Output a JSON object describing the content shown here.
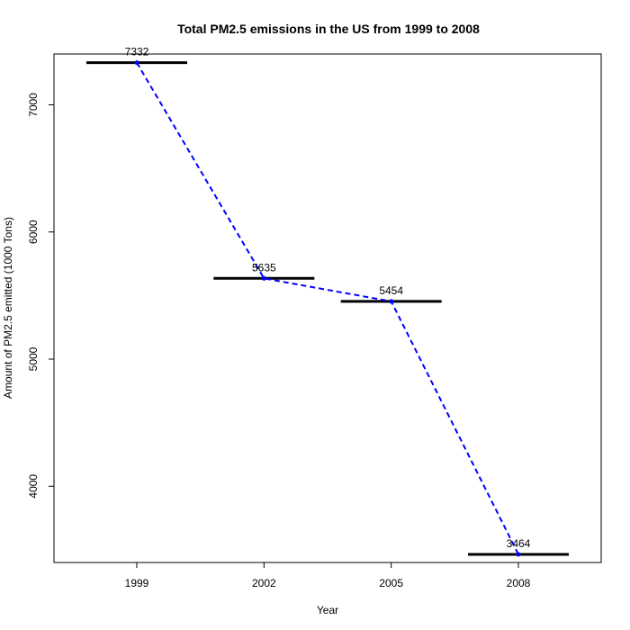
{
  "chart_data": {
    "type": "line",
    "title": "Total PM2.5 emissions in the US from 1999 to 2008",
    "xlabel": "Year",
    "ylabel": "Amount of PM2.5 emitted (1000 Tons)",
    "categories": [
      "1999",
      "2002",
      "2005",
      "2008"
    ],
    "values": [
      7332,
      5635,
      5454,
      3464
    ],
    "data_labels": [
      "7332",
      "5635",
      "5454",
      "3464"
    ],
    "yticks": [
      4000,
      5000,
      6000,
      7000
    ],
    "ylim": [
      3400,
      7400
    ],
    "grid": false,
    "legend": "none",
    "line_style": "dashed",
    "line_color": "#0000ff",
    "point_color": "#0000ff",
    "bar_color": "#000000"
  }
}
